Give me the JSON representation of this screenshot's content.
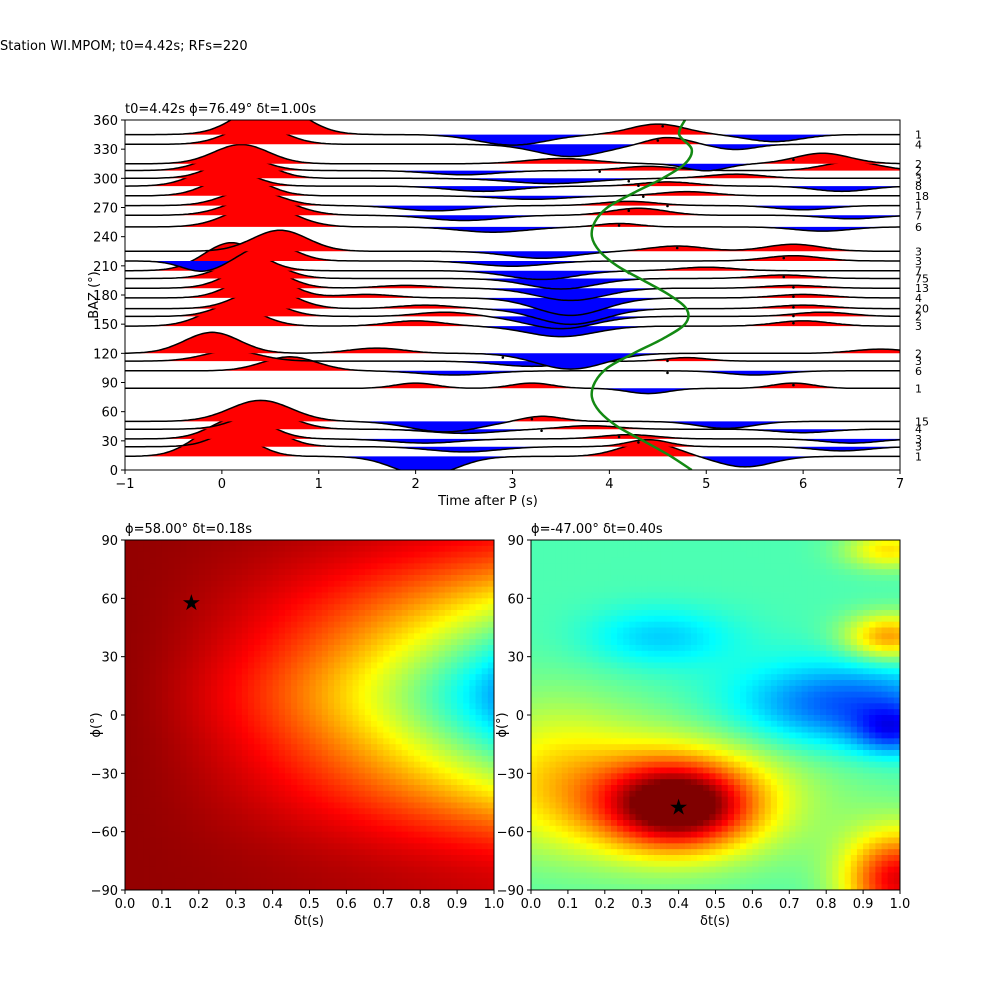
{
  "figure": {
    "suptitle": "Station WI.MPOM; t0=4.42s; RFs=220"
  },
  "colors": {
    "positive": "#ff0000",
    "negative": "#0000ff",
    "trace": "#000000",
    "delay_curve": "#138a13",
    "star": "#000000"
  },
  "chart_data": [
    {
      "type": "area",
      "id": "rf_traces",
      "title": "t0=4.42s ϕ=76.49° δt=1.00s",
      "xlabel": "Time after P (s)",
      "ylabel": "BAZ (°)",
      "xlim": [
        -1,
        7
      ],
      "ylim": [
        0,
        360
      ],
      "xticks": [
        -1,
        0,
        1,
        2,
        3,
        4,
        5,
        6,
        7
      ],
      "yticks": [
        0,
        30,
        60,
        90,
        120,
        150,
        180,
        210,
        240,
        270,
        300,
        330,
        360
      ],
      "trace_amplitude_scale_deg": 36,
      "series": [
        {
          "baz": 345,
          "count": "1",
          "marker_t": 4.55,
          "peaks": [
            [
              0.5,
              0.95,
              0.45
            ],
            [
              3.0,
              -0.3,
              0.5
            ],
            [
              4.5,
              0.3,
              0.4
            ],
            [
              5.7,
              -0.2,
              0.4
            ]
          ]
        },
        {
          "baz": 335,
          "count": "4",
          "marker_t": 4.5,
          "peaks": [
            [
              0.35,
              0.55,
              0.4
            ],
            [
              3.6,
              -0.35,
              0.5
            ],
            [
              4.6,
              0.2,
              0.3
            ],
            [
              5.3,
              -0.15,
              0.3
            ]
          ]
        },
        {
          "baz": 315,
          "count": "2",
          "marker_t": 5.9,
          "peaks": [
            [
              0.2,
              0.55,
              0.4
            ],
            [
              3.5,
              0.15,
              0.5
            ],
            [
              5.0,
              -0.2,
              0.3
            ],
            [
              6.2,
              0.3,
              0.4
            ]
          ]
        },
        {
          "baz": 308,
          "count": "2",
          "marker_t": 3.9,
          "peaks": [
            [
              0.1,
              0.5,
              0.4
            ],
            [
              2.5,
              -0.12,
              0.5
            ],
            [
              4.4,
              0.12,
              0.4
            ],
            [
              6.5,
              0.25,
              0.4
            ]
          ]
        },
        {
          "baz": 300,
          "count": "3",
          "marker_t": 4.2,
          "peaks": [
            [
              0.2,
              0.6,
              0.4
            ],
            [
              3.4,
              -0.15,
              0.6
            ],
            [
              5.3,
              0.12,
              0.4
            ]
          ]
        },
        {
          "baz": 292,
          "count": "8",
          "marker_t": 4.3,
          "peaks": [
            [
              0.0,
              0.55,
              0.4
            ],
            [
              2.7,
              -0.15,
              0.5
            ],
            [
              4.6,
              0.12,
              0.4
            ],
            [
              6.4,
              -0.15,
              0.4
            ]
          ]
        },
        {
          "baz": 282,
          "count": "18",
          "marker_t": 4.35,
          "peaks": [
            [
              0.15,
              0.6,
              0.4
            ],
            [
              3.2,
              -0.1,
              0.5
            ],
            [
              4.8,
              0.12,
              0.4
            ]
          ]
        },
        {
          "baz": 272,
          "count": "1",
          "marker_t": 4.6,
          "peaks": [
            [
              0.3,
              0.45,
              0.4
            ],
            [
              2.2,
              -0.15,
              0.5
            ],
            [
              4.2,
              0.12,
              0.4
            ],
            [
              6.0,
              -0.12,
              0.4
            ]
          ]
        },
        {
          "baz": 262,
          "count": "7",
          "marker_t": 4.2,
          "peaks": [
            [
              0.4,
              0.55,
              0.45
            ],
            [
              2.5,
              -0.15,
              0.5
            ],
            [
              4.3,
              0.2,
              0.4
            ],
            [
              6.5,
              -0.1,
              0.4
            ]
          ]
        },
        {
          "baz": 250,
          "count": "6",
          "marker_t": 4.1,
          "peaks": [
            [
              0.4,
              0.65,
              0.45
            ],
            [
              2.8,
              -0.15,
              0.5
            ],
            [
              4.1,
              0.1,
              0.3
            ],
            [
              6.2,
              -0.12,
              0.4
            ]
          ]
        },
        {
          "baz": 225,
          "count": "3",
          "marker_t": 4.7,
          "peaks": [
            [
              0.6,
              0.6,
              0.4
            ],
            [
              3.3,
              -0.2,
              0.5
            ],
            [
              4.7,
              0.15,
              0.4
            ],
            [
              5.9,
              0.2,
              0.4
            ]
          ]
        },
        {
          "baz": 215,
          "count": "3",
          "marker_t": 5.8,
          "peaks": [
            [
              -0.2,
              -0.3,
              0.3
            ],
            [
              0.5,
              0.5,
              0.35
            ],
            [
              3.0,
              -0.15,
              0.5
            ],
            [
              5.9,
              0.15,
              0.4
            ]
          ]
        },
        {
          "baz": 205,
          "count": "7",
          "marker_t": 4.2,
          "peaks": [
            [
              0.1,
              0.8,
              0.4
            ],
            [
              3.3,
              -0.25,
              0.5
            ],
            [
              5.0,
              0.1,
              0.4
            ]
          ]
        },
        {
          "baz": 197,
          "count": "75",
          "marker_t": 5.8,
          "peaks": [
            [
              0.3,
              0.6,
              0.4
            ],
            [
              3.5,
              -0.3,
              0.5
            ],
            [
              5.8,
              0.1,
              0.4
            ]
          ]
        },
        {
          "baz": 187,
          "count": "13",
          "marker_t": 5.9,
          "peaks": [
            [
              0.35,
              0.65,
              0.4
            ],
            [
              1.9,
              0.08,
              0.4
            ],
            [
              3.6,
              -0.35,
              0.5
            ],
            [
              5.9,
              0.08,
              0.4
            ]
          ]
        },
        {
          "baz": 177,
          "count": "4",
          "marker_t": 5.9,
          "peaks": [
            [
              0.4,
              0.7,
              0.4
            ],
            [
              1.5,
              0.1,
              0.4
            ],
            [
              3.6,
              -0.5,
              0.5
            ],
            [
              6.0,
              0.1,
              0.4
            ]
          ]
        },
        {
          "baz": 166,
          "count": "20",
          "marker_t": 5.9,
          "peaks": [
            [
              0.45,
              0.6,
              0.4
            ],
            [
              2.1,
              0.1,
              0.4
            ],
            [
              3.6,
              -0.45,
              0.5
            ],
            [
              6.0,
              0.1,
              0.4
            ]
          ]
        },
        {
          "baz": 158,
          "count": "2",
          "marker_t": 5.9,
          "peaks": [
            [
              0.3,
              0.55,
              0.4
            ],
            [
              2.3,
              0.12,
              0.4
            ],
            [
              3.5,
              -0.35,
              0.5
            ],
            [
              6.2,
              0.12,
              0.4
            ]
          ]
        },
        {
          "baz": 148,
          "count": "3",
          "marker_t": 5.9,
          "peaks": [
            [
              0.1,
              0.6,
              0.4
            ],
            [
              2.0,
              0.15,
              0.4
            ],
            [
              3.5,
              -0.3,
              0.5
            ],
            [
              6.0,
              0.15,
              0.4
            ]
          ]
        },
        {
          "baz": 120,
          "count": "2",
          "marker_t": 2.9,
          "peaks": [
            [
              -0.1,
              0.6,
              0.4
            ],
            [
              1.6,
              0.15,
              0.4
            ],
            [
              3.6,
              -0.45,
              0.5
            ],
            [
              6.8,
              0.12,
              0.4
            ]
          ]
        },
        {
          "baz": 112,
          "count": "3",
          "marker_t": 4.6,
          "peaks": [
            [
              0.1,
              0.3,
              0.4
            ],
            [
              3.2,
              -0.15,
              0.5
            ],
            [
              4.8,
              0.1,
              0.3
            ]
          ]
        },
        {
          "baz": 102,
          "count": "6",
          "marker_t": 4.6,
          "peaks": [
            [
              0.7,
              0.4,
              0.4
            ],
            [
              2.4,
              -0.12,
              0.5
            ],
            [
              5.5,
              -0.12,
              0.4
            ]
          ]
        },
        {
          "baz": 84,
          "count": "1",
          "marker_t": 5.9,
          "peaks": [
            [
              2.0,
              0.15,
              0.3
            ],
            [
              3.2,
              0.15,
              0.3
            ],
            [
              4.4,
              -0.15,
              0.3
            ],
            [
              5.9,
              0.15,
              0.3
            ]
          ]
        },
        {
          "baz": 50,
          "count": "15",
          "marker_t": 3.2,
          "peaks": [
            [
              0.4,
              0.6,
              0.45
            ],
            [
              2.3,
              -0.3,
              0.5
            ],
            [
              3.3,
              0.15,
              0.3
            ],
            [
              5.2,
              -0.2,
              0.4
            ]
          ]
        },
        {
          "baz": 42,
          "count": "4",
          "marker_t": 3.3,
          "peaks": [
            [
              0.45,
              0.5,
              0.4
            ],
            [
              2.5,
              -0.12,
              0.5
            ],
            [
              3.8,
              0.1,
              0.4
            ],
            [
              6.0,
              -0.1,
              0.4
            ]
          ]
        },
        {
          "baz": 32,
          "count": "3",
          "marker_t": 4.1,
          "peaks": [
            [
              0.2,
              0.65,
              0.4
            ],
            [
              2.1,
              -0.12,
              0.5
            ],
            [
              4.2,
              0.12,
              0.4
            ],
            [
              6.5,
              -0.12,
              0.4
            ]
          ]
        },
        {
          "baz": 24,
          "count": "3",
          "marker_t": 4.3,
          "peaks": [
            [
              0.3,
              0.7,
              0.4
            ],
            [
              2.5,
              -0.15,
              0.5
            ],
            [
              4.4,
              0.2,
              0.3
            ],
            [
              6.4,
              -0.12,
              0.4
            ]
          ]
        },
        {
          "baz": 14,
          "count": "1",
          "marker_t": 4.5,
          "peaks": [
            [
              0.0,
              0.85,
              0.4
            ],
            [
              2.1,
              -0.55,
              0.45
            ],
            [
              4.4,
              0.4,
              0.4
            ],
            [
              5.4,
              -0.3,
              0.4
            ]
          ]
        }
      ],
      "delay_curve": {
        "baz": [
          0,
          15,
          30,
          45,
          60,
          75,
          90,
          105,
          120,
          135,
          150,
          165,
          180,
          195,
          210,
          225,
          240,
          255,
          270,
          285,
          300,
          315,
          330,
          345,
          360
        ],
        "t": [
          4.85,
          4.62,
          4.35,
          4.08,
          3.9,
          3.82,
          3.85,
          3.98,
          4.25,
          4.55,
          4.78,
          4.8,
          4.62,
          4.35,
          4.08,
          3.9,
          3.82,
          3.85,
          3.98,
          4.25,
          4.55,
          4.78,
          4.85,
          4.72,
          4.78
        ]
      }
    },
    {
      "type": "heatmap",
      "id": "grid_left",
      "title": "ϕ=58.00° δt=0.18s",
      "xlabel": "δt(s)",
      "ylabel": "ϕ(°)",
      "xlim": [
        0,
        1
      ],
      "ylim": [
        -90,
        90
      ],
      "xticks": [
        "0.0",
        "0.1",
        "0.2",
        "0.3",
        "0.4",
        "0.5",
        "0.6",
        "0.7",
        "0.8",
        "0.9",
        "1.0"
      ],
      "yticks": [
        "−90",
        "−60",
        "−30",
        "0",
        "30",
        "60",
        "90"
      ],
      "colormap": "jet",
      "best": {
        "dt": 0.18,
        "phi": 58
      }
    },
    {
      "type": "heatmap",
      "id": "grid_right",
      "title": "ϕ=-47.00° δt=0.40s",
      "xlabel": "δt(s)",
      "ylabel": "ϕ(°)",
      "xlim": [
        0,
        1
      ],
      "ylim": [
        -90,
        90
      ],
      "xticks": [
        "0.0",
        "0.1",
        "0.2",
        "0.3",
        "0.4",
        "0.5",
        "0.6",
        "0.7",
        "0.8",
        "0.9",
        "1.0"
      ],
      "yticks": [
        "−90",
        "−60",
        "−30",
        "0",
        "30",
        "60",
        "90"
      ],
      "colormap": "jet",
      "best": {
        "dt": 0.4,
        "phi": -47
      }
    }
  ]
}
